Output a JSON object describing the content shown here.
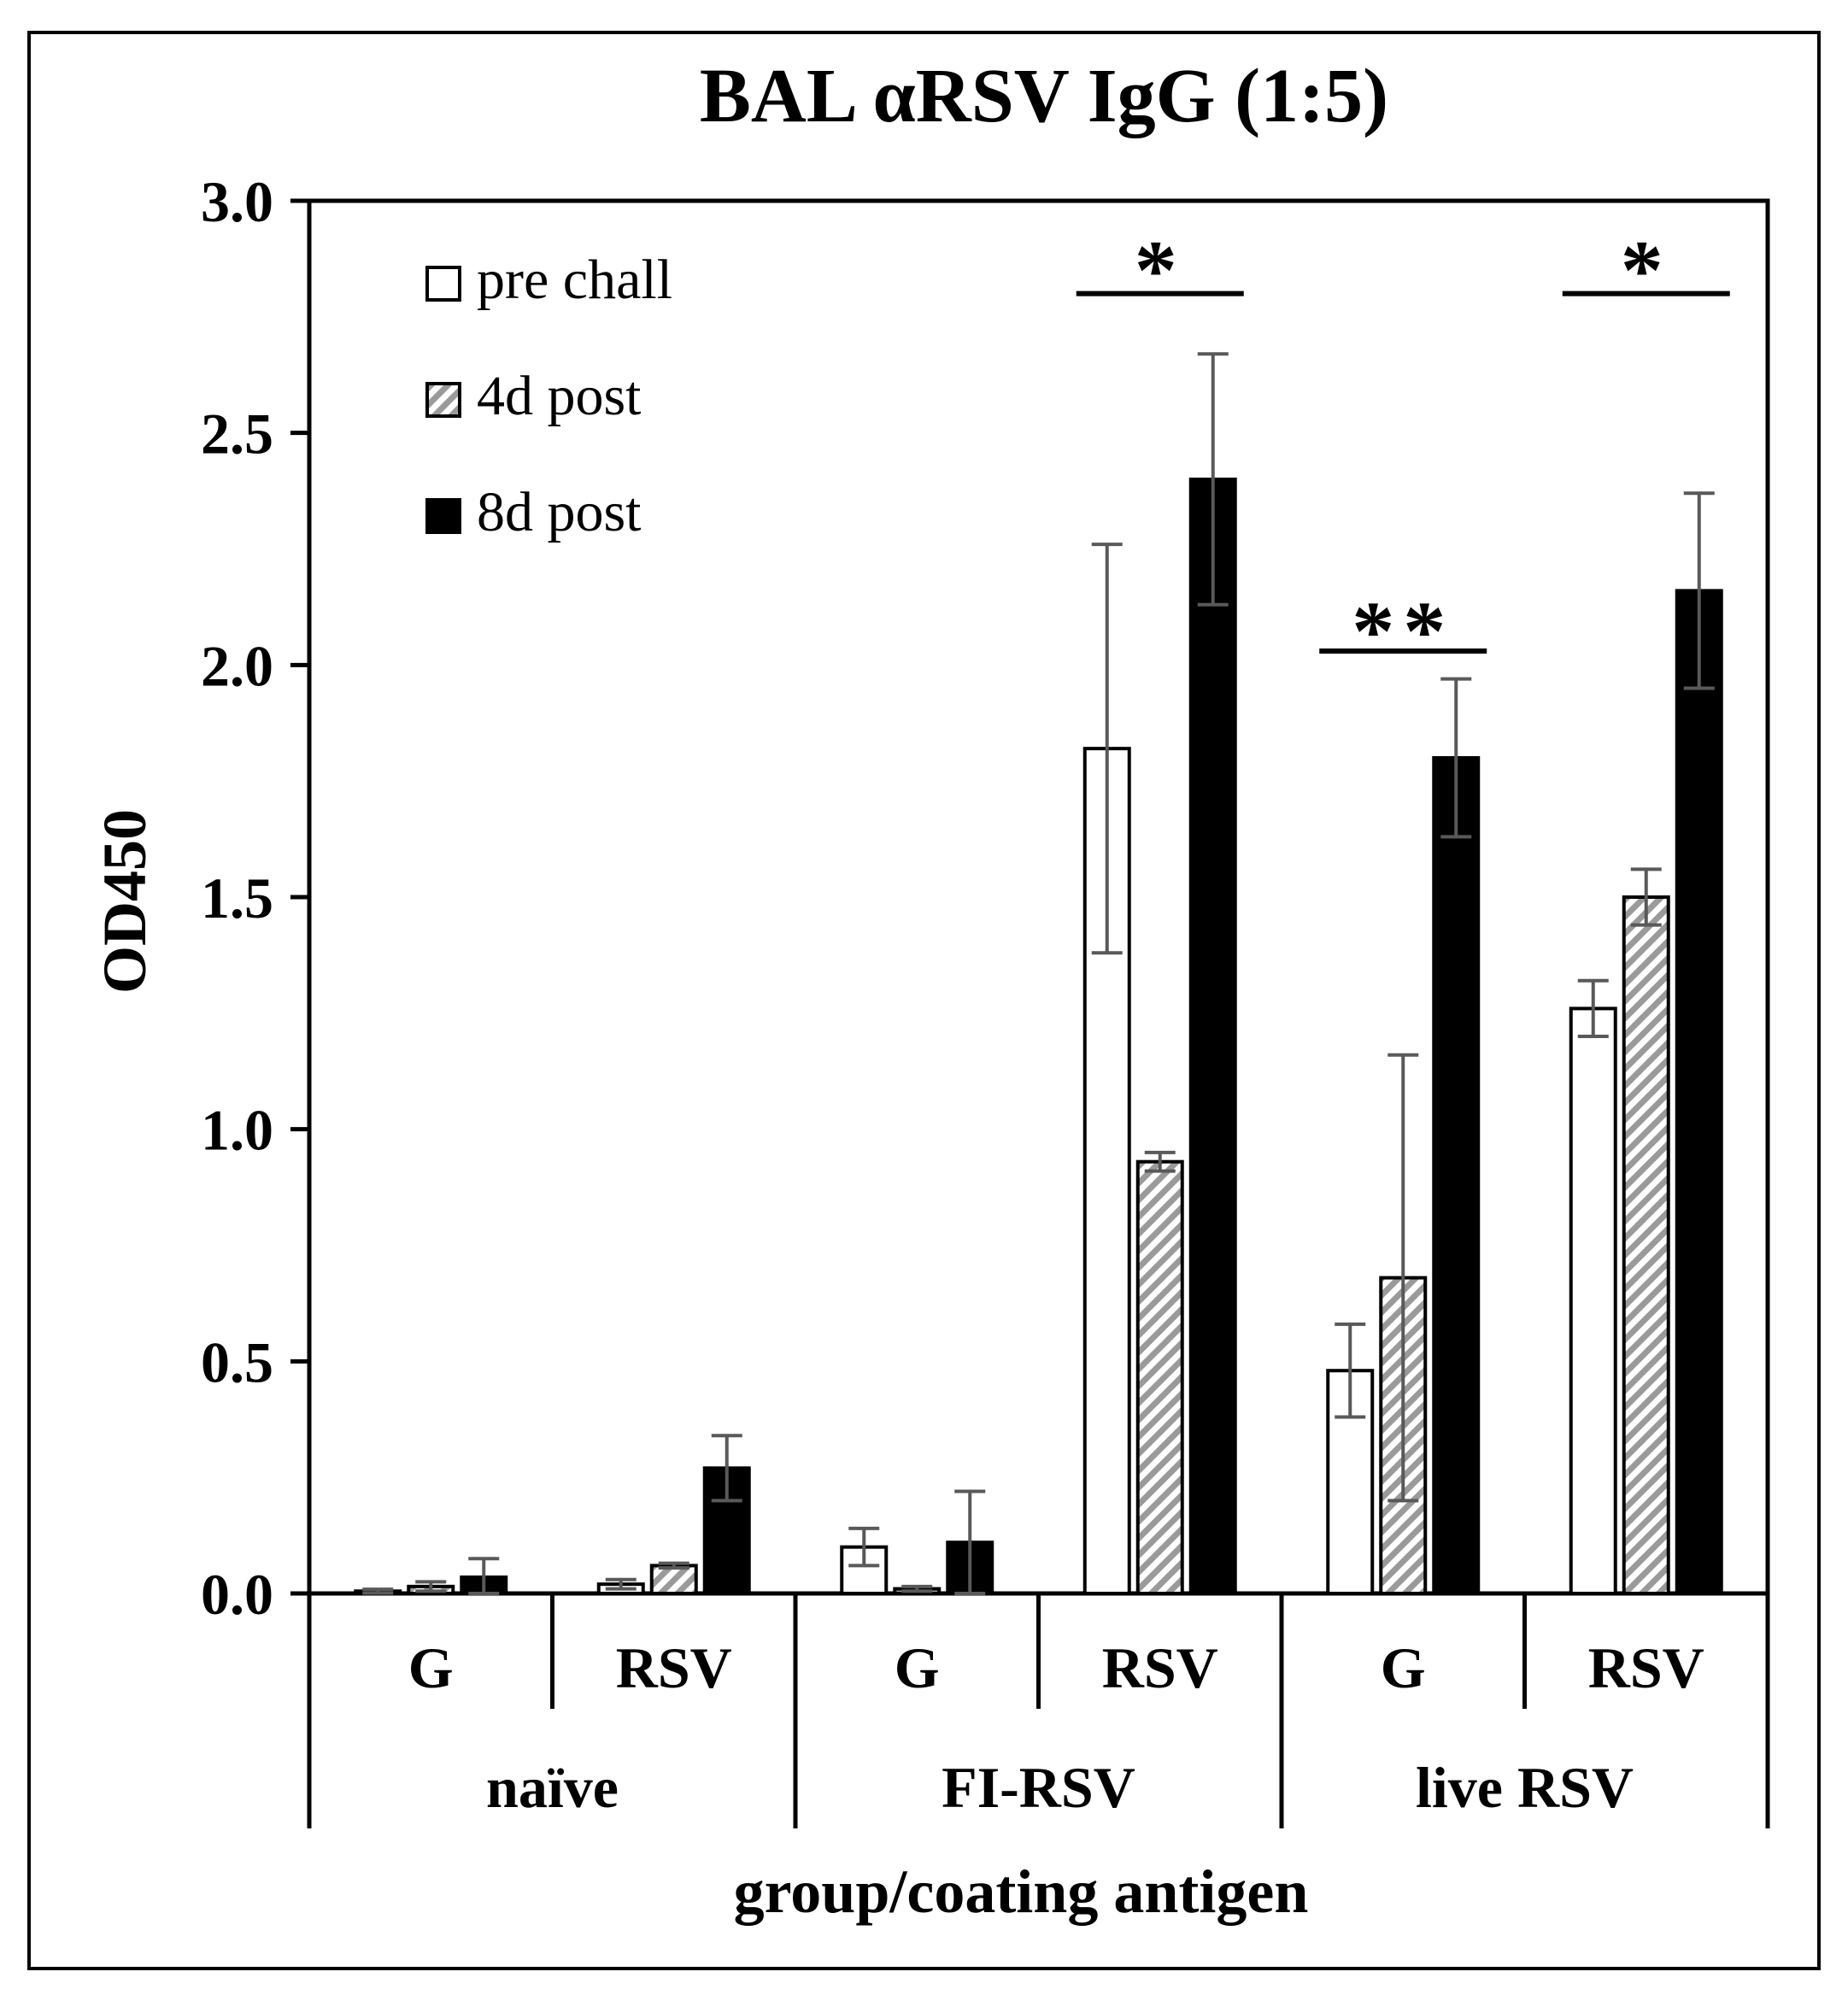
{
  "chart_data": {
    "type": "bar",
    "title": "BAL αRSV IgG (1:5)",
    "ylabel": "OD450",
    "xlabel": "group/coating antigen",
    "ylim": [
      0,
      3.0
    ],
    "yticks": [
      "0.0",
      "0.5",
      "1.0",
      "1.5",
      "2.0",
      "2.5",
      "3.0"
    ],
    "ytick_values": [
      0,
      0.5,
      1.0,
      1.5,
      2.0,
      2.5,
      3.0
    ],
    "groups": [
      {
        "label": "naïve",
        "subcategories": [
          "G",
          "RSV"
        ]
      },
      {
        "label": "FI-RSV",
        "subcategories": [
          "G",
          "RSV"
        ]
      },
      {
        "label": "live RSV",
        "subcategories": [
          "G",
          "RSV"
        ]
      }
    ],
    "categories": [
      "G",
      "RSV",
      "G",
      "RSV",
      "G",
      "RSV"
    ],
    "series": [
      {
        "name": "pre chall",
        "style": "open",
        "values": [
          0.005,
          0.02,
          0.1,
          1.82,
          0.48,
          1.26
        ],
        "errors": [
          0.004,
          0.01,
          0.04,
          0.44,
          0.1,
          0.06
        ]
      },
      {
        "name": "4d post",
        "style": "hatched",
        "values": [
          0.015,
          0.06,
          0.01,
          0.93,
          0.68,
          1.5
        ],
        "errors": [
          0.01,
          0.005,
          0.005,
          0.02,
          0.48,
          0.06
        ]
      },
      {
        "name": "8d post",
        "style": "solid",
        "values": [
          0.035,
          0.27,
          0.11,
          2.4,
          1.8,
          2.16
        ],
        "errors": [
          0.04,
          0.07,
          0.11,
          0.27,
          0.17,
          0.21
        ]
      }
    ],
    "significance": [
      {
        "label": "*",
        "category_index": 3,
        "y": 2.8
      },
      {
        "label": "**",
        "category_index": 4,
        "y": 2.03
      },
      {
        "label": "*",
        "category_index": 5,
        "y": 2.8
      }
    ],
    "legend_position": "top-left",
    "colors": {
      "bar_fill_solid": "#000000",
      "bar_fill_open": "#ffffff",
      "hatch": "#9a9a9a",
      "error_bar": "#595959",
      "axis": "#000000"
    }
  }
}
